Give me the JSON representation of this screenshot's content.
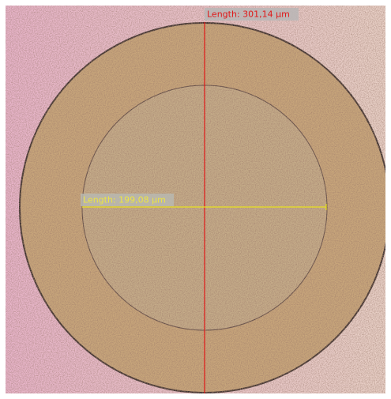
{
  "measurements": [
    {
      "label": "Length: 301,14 µm"
    },
    {
      "label": "Length: 199,08 µm"
    }
  ]
}
